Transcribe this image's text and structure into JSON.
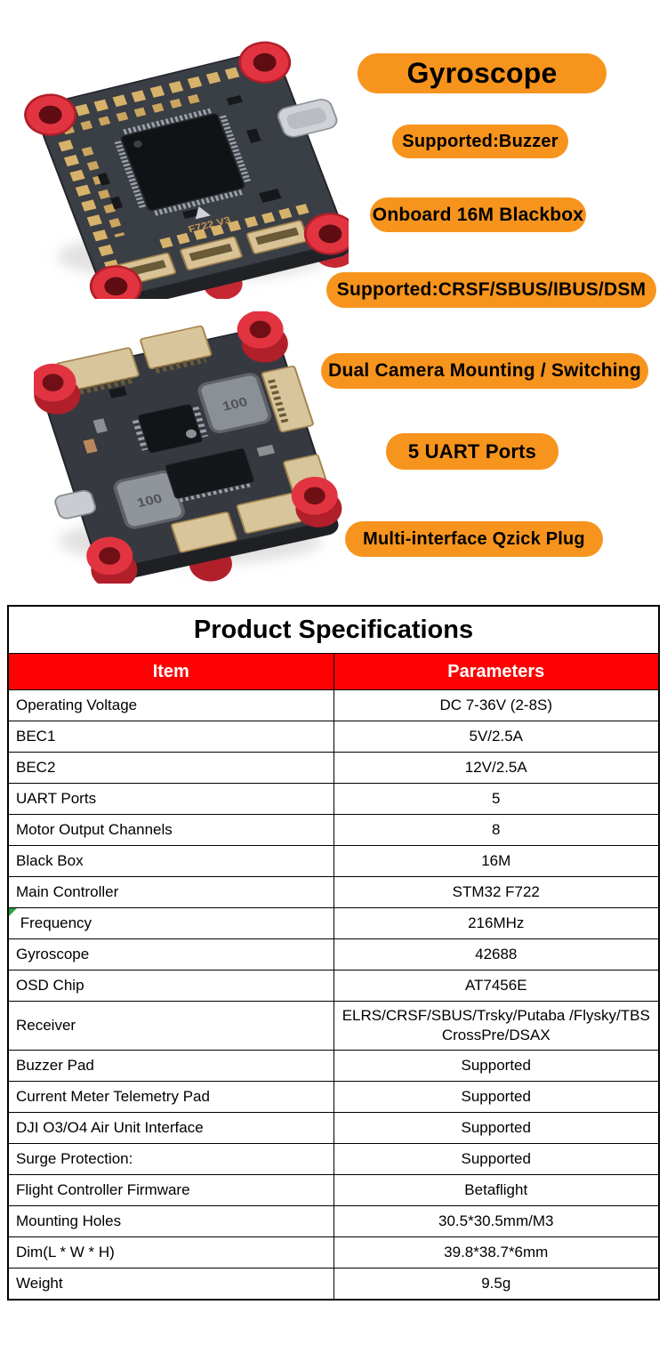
{
  "colors": {
    "badge_orange": "#F7941D",
    "badge_text": "#000000",
    "table_header_bg": "#FC0202",
    "table_header_text": "#FFFFFF",
    "marker_green": "#2F9E44"
  },
  "images": {
    "top_board": {
      "silkscreen": "F722 V3"
    },
    "bottom_board": {
      "inductor_label": "100"
    }
  },
  "badges": [
    {
      "name": "gyroscope",
      "label": "Gyroscope"
    },
    {
      "name": "supported-buzzer",
      "label": "Supported:Buzzer"
    },
    {
      "name": "onboard-16m-blackbox",
      "label": "Onboard 16M Blackbox"
    },
    {
      "name": "supported-protocols",
      "label": "Supported:CRSF/SBUS/IBUS/DSM"
    },
    {
      "name": "dual-camera-mounting",
      "label": "Dual Camera Mounting / Switching"
    },
    {
      "name": "5-uart-ports",
      "label": "5 UART Ports"
    },
    {
      "name": "multi-interface-qzick-plug",
      "label": "Multi-interface Qzick Plug"
    }
  ],
  "table": {
    "title": "Product Specifications",
    "columns": [
      "Item",
      "Parameters"
    ],
    "rows": [
      {
        "item": "Operating Voltage",
        "value": "DC 7-36V (2-8S)"
      },
      {
        "item": "BEC1",
        "value": "5V/2.5A"
      },
      {
        "item": "BEC2",
        "value": "12V/2.5A"
      },
      {
        "item": "UART Ports",
        "value": "5"
      },
      {
        "item": "Motor Output Channels",
        "value": "8"
      },
      {
        "item": "Black Box",
        "value": "16M"
      },
      {
        "item": "Main Controller",
        "value": "STM32 F722"
      },
      {
        "item": " Frequency",
        "value": "216MHz",
        "has_marker": true
      },
      {
        "item": "Gyroscope",
        "value": "42688"
      },
      {
        "item": "OSD Chip",
        "value": "AT7456E"
      },
      {
        "item": "Receiver",
        "value": "ELRS/CRSF/SBUS/Trsky/Putaba /Flysky/TBS\nCrossPre/DSAX",
        "tall": true
      },
      {
        "item": "Buzzer Pad",
        "value": "Supported"
      },
      {
        "item": "Current Meter Telemetry Pad",
        "value": "Supported"
      },
      {
        "item": "DJI O3/O4 Air Unit Interface",
        "value": "Supported"
      },
      {
        "item": "Surge Protection:",
        "value": "Supported"
      },
      {
        "item": "Flight Controller Firmware",
        "value": "Betaflight"
      },
      {
        "item": "Mounting Holes",
        "value": "30.5*30.5mm/M3"
      },
      {
        "item": "Dim(L * W * H)",
        "value": "39.8*38.7*6mm"
      },
      {
        "item": "Weight",
        "value": "9.5g"
      }
    ]
  }
}
